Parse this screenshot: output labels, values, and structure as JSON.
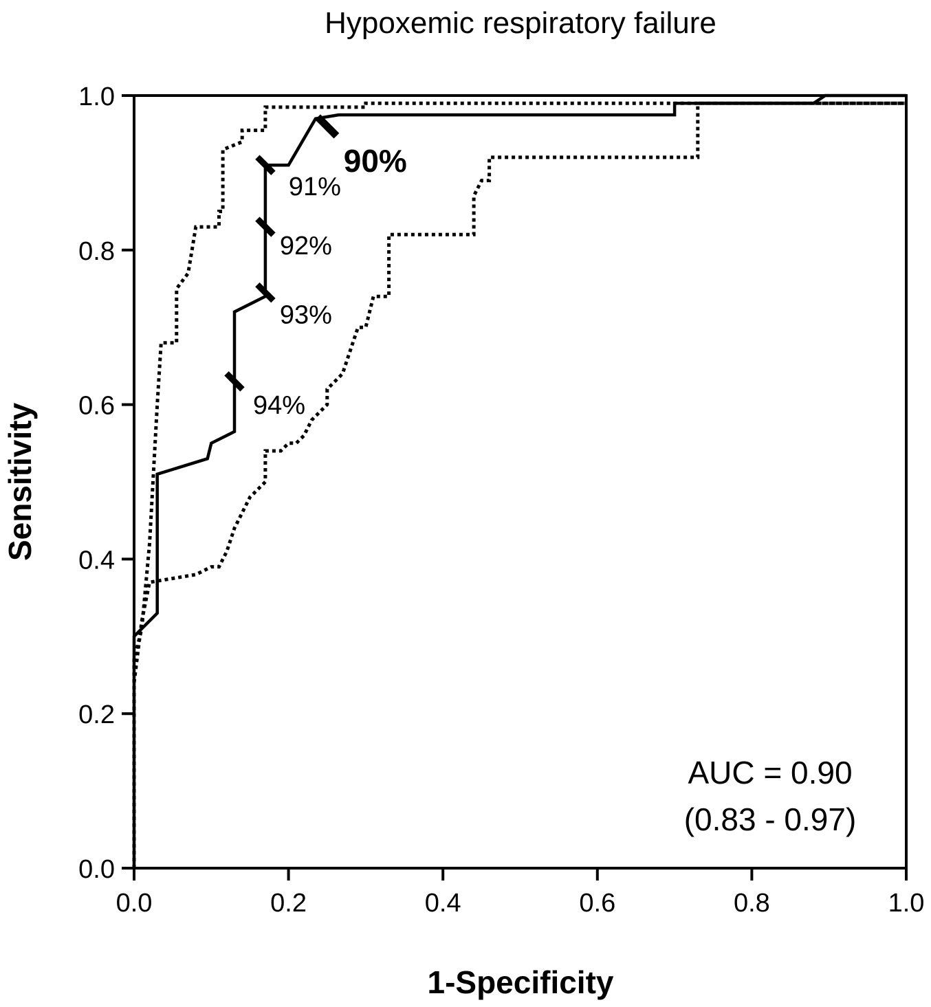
{
  "chart_data": {
    "type": "line",
    "title": "Hypoxemic respiratory failure",
    "xlabel": "1-Specificity",
    "ylabel": "Sensitivity",
    "xlim": [
      0.0,
      1.0
    ],
    "ylim": [
      0.0,
      1.0
    ],
    "x_ticks": [
      "0.0",
      "0.2",
      "0.4",
      "0.6",
      "0.8",
      "1.0"
    ],
    "y_ticks": [
      "0.0",
      "0.2",
      "0.4",
      "0.6",
      "0.8",
      "1.0"
    ],
    "grid": false,
    "legend": "none",
    "series": [
      {
        "style": "solid",
        "points": [
          [
            0.0,
            0.0
          ],
          [
            0.0,
            0.3
          ],
          [
            0.03,
            0.33
          ],
          [
            0.03,
            0.51
          ],
          [
            0.095,
            0.53
          ],
          [
            0.1,
            0.55
          ],
          [
            0.13,
            0.565
          ],
          [
            0.13,
            0.72
          ],
          [
            0.17,
            0.74
          ],
          [
            0.17,
            0.91
          ],
          [
            0.2,
            0.91
          ],
          [
            0.235,
            0.97
          ],
          [
            0.265,
            0.975
          ],
          [
            0.7,
            0.975
          ],
          [
            0.7,
            0.99
          ],
          [
            0.88,
            0.99
          ],
          [
            0.895,
            1.0
          ],
          [
            1.0,
            1.0
          ]
        ]
      },
      {
        "style": "dotted",
        "points": [
          [
            0.0,
            0.0
          ],
          [
            0.0,
            0.27
          ],
          [
            0.01,
            0.31
          ],
          [
            0.02,
            0.42
          ],
          [
            0.03,
            0.6
          ],
          [
            0.035,
            0.68
          ],
          [
            0.055,
            0.68
          ],
          [
            0.055,
            0.75
          ],
          [
            0.07,
            0.77
          ],
          [
            0.08,
            0.83
          ],
          [
            0.11,
            0.83
          ],
          [
            0.11,
            0.85
          ],
          [
            0.115,
            0.85
          ],
          [
            0.115,
            0.93
          ],
          [
            0.14,
            0.94
          ],
          [
            0.14,
            0.955
          ],
          [
            0.17,
            0.955
          ],
          [
            0.17,
            0.985
          ],
          [
            0.3,
            0.985
          ],
          [
            0.3,
            0.99
          ],
          [
            1.0,
            0.99
          ]
        ]
      },
      {
        "style": "dotted",
        "points": [
          [
            0.0,
            0.0
          ],
          [
            0.0,
            0.24
          ],
          [
            0.01,
            0.32
          ],
          [
            0.02,
            0.37
          ],
          [
            0.05,
            0.375
          ],
          [
            0.08,
            0.38
          ],
          [
            0.1,
            0.39
          ],
          [
            0.11,
            0.39
          ],
          [
            0.12,
            0.41
          ],
          [
            0.13,
            0.44
          ],
          [
            0.15,
            0.48
          ],
          [
            0.16,
            0.49
          ],
          [
            0.17,
            0.5
          ],
          [
            0.17,
            0.54
          ],
          [
            0.19,
            0.54
          ],
          [
            0.2,
            0.55
          ],
          [
            0.21,
            0.55
          ],
          [
            0.22,
            0.56
          ],
          [
            0.23,
            0.58
          ],
          [
            0.25,
            0.6
          ],
          [
            0.25,
            0.62
          ],
          [
            0.26,
            0.63
          ],
          [
            0.27,
            0.64
          ],
          [
            0.28,
            0.67
          ],
          [
            0.29,
            0.7
          ],
          [
            0.3,
            0.7
          ],
          [
            0.31,
            0.74
          ],
          [
            0.33,
            0.74
          ],
          [
            0.33,
            0.82
          ],
          [
            0.4,
            0.82
          ],
          [
            0.44,
            0.82
          ],
          [
            0.44,
            0.87
          ],
          [
            0.45,
            0.89
          ],
          [
            0.46,
            0.89
          ],
          [
            0.46,
            0.92
          ],
          [
            0.73,
            0.92
          ],
          [
            0.73,
            0.99
          ],
          [
            1.0,
            0.99
          ]
        ]
      }
    ],
    "threshold_markers": [
      {
        "label": "90%",
        "x": 0.25,
        "y": 0.96,
        "bold": true
      },
      {
        "label": "91%",
        "x": 0.17,
        "y": 0.91,
        "bold": false
      },
      {
        "label": "92%",
        "x": 0.17,
        "y": 0.83,
        "bold": false
      },
      {
        "label": "93%",
        "x": 0.17,
        "y": 0.745,
        "bold": false
      },
      {
        "label": "94%",
        "x": 0.13,
        "y": 0.63,
        "bold": false
      }
    ],
    "annotations": {
      "auc": "AUC = 0.90",
      "ci": "(0.83 - 0.97)"
    }
  }
}
